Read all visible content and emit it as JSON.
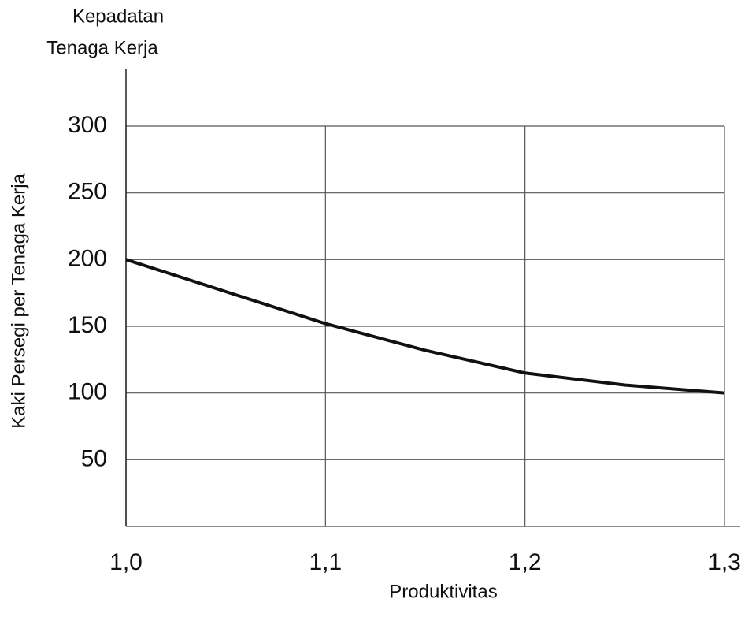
{
  "chart_data": {
    "type": "line",
    "title": [
      "Kepadatan",
      "Tenaga Kerja"
    ],
    "x_label": "Produktivitas",
    "y_label": "Kaki Persegi per Tenaga Kerja",
    "x": [
      1.0,
      1.05,
      1.1,
      1.15,
      1.2,
      1.25,
      1.3
    ],
    "series": [
      {
        "color": "#111111",
        "values": [
          200,
          176,
          152,
          132,
          115,
          106,
          100
        ]
      }
    ],
    "xlim": [
      1.0,
      1.3
    ],
    "xticks": [
      {
        "value": 1.0,
        "label": "1,0"
      },
      {
        "value": 1.1,
        "label": "1,1"
      },
      {
        "value": 1.2,
        "label": "1,2"
      },
      {
        "value": 1.3,
        "label": "1,3"
      }
    ],
    "ylim": [
      0,
      300
    ],
    "yticks": [
      50,
      100,
      150,
      200,
      250,
      300
    ],
    "grid": true
  }
}
